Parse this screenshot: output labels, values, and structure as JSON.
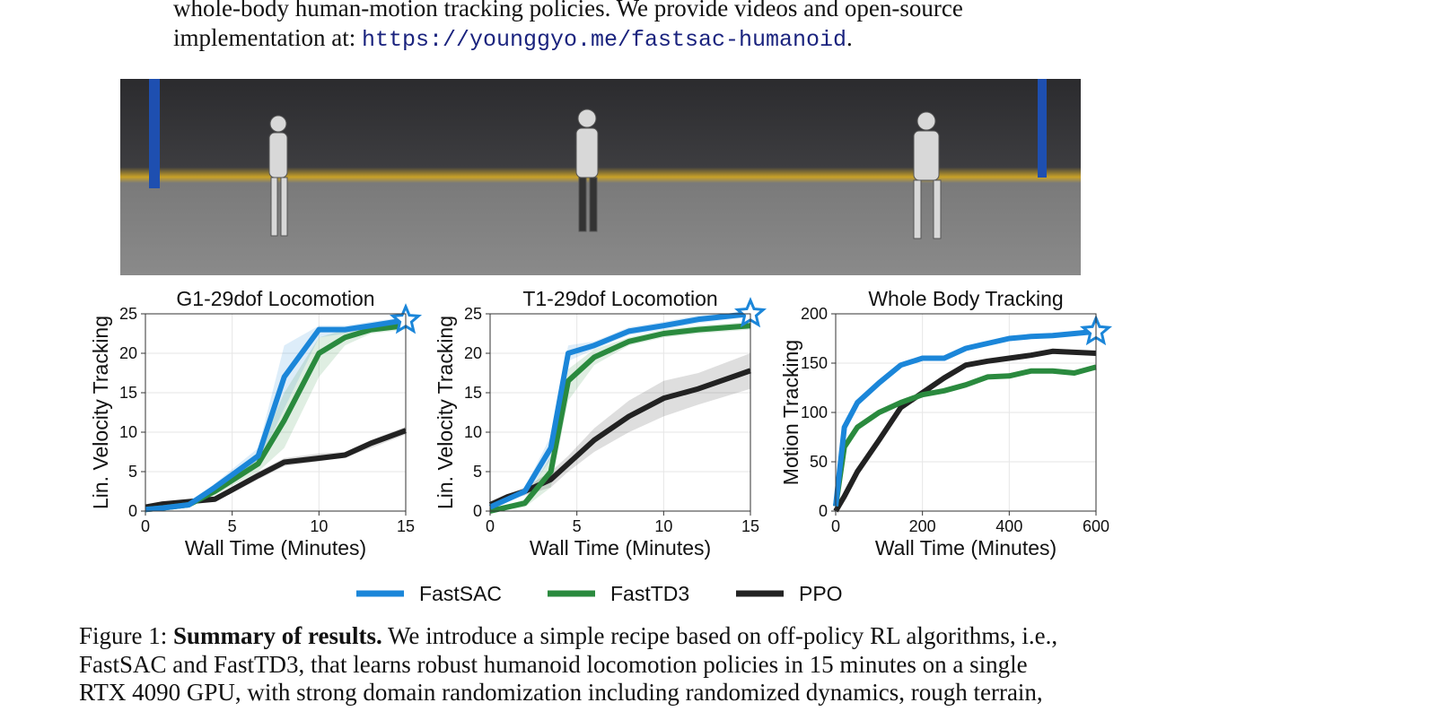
{
  "text_top": {
    "line1": "whole-body human-motion tracking policies. We provide videos and open-source",
    "line2_prefix": "implementation at:",
    "link": "https://younggyo.me/fastsac-humanoid",
    "line2_suffix": "."
  },
  "legend": [
    {
      "name": "FastSAC",
      "color": "#1b86d9"
    },
    {
      "name": "FastTD3",
      "color": "#2a8a3e"
    },
    {
      "name": "PPO",
      "color": "#222222"
    }
  ],
  "chart_data": [
    {
      "type": "line",
      "title": "G1-29dof Locomotion",
      "x_label": "Wall Time (Minutes)",
      "y_label": "Lin. Velocity Tracking",
      "grid": true,
      "xlim": [
        0,
        15
      ],
      "ylim": [
        0,
        25
      ],
      "xticks": [
        0,
        5,
        10,
        15
      ],
      "yticks": [
        0,
        5,
        10,
        15,
        20,
        25
      ],
      "x": [
        0,
        1,
        2.5,
        4,
        6.5,
        8,
        10,
        11.5,
        13,
        15
      ],
      "series": [
        {
          "values": [
            0.2,
            0.4,
            0.8,
            3,
            7,
            17,
            23,
            23,
            23.5,
            24.2
          ],
          "lower": [
            0,
            0.2,
            0.6,
            2.5,
            6,
            13,
            22,
            22.5,
            23,
            23.8
          ],
          "upper": [
            0.4,
            0.6,
            1,
            3.5,
            8,
            21,
            23.5,
            23.5,
            24,
            24.6
          ]
        },
        {
          "values": [
            0.2,
            0.4,
            0.8,
            2.5,
            6,
            11.5,
            20,
            22,
            23,
            23.5
          ],
          "lower": [
            0,
            0.2,
            0.6,
            2,
            5,
            8,
            17,
            21,
            22.5,
            23
          ],
          "upper": [
            0.4,
            0.6,
            1,
            3,
            7.5,
            15,
            22,
            23,
            23.5,
            24
          ]
        },
        {
          "values": [
            0.5,
            0.9,
            1.2,
            1.5,
            4.5,
            6.2,
            6.7,
            7.1,
            8.6,
            10.2
          ],
          "lower": [
            0.3,
            0.7,
            1,
            1.2,
            4,
            5.7,
            6.3,
            6.8,
            8,
            9.7
          ],
          "upper": [
            0.7,
            1.1,
            1.4,
            1.8,
            5,
            6.7,
            7.3,
            7.5,
            9,
            10.7
          ]
        }
      ]
    },
    {
      "type": "line",
      "title": "T1-29dof Locomotion",
      "x_label": "Wall Time (Minutes)",
      "y_label": "Lin. Velocity Tracking",
      "grid": true,
      "xlim": [
        0,
        15
      ],
      "ylim": [
        0,
        25
      ],
      "xticks": [
        0,
        5,
        10,
        15
      ],
      "yticks": [
        0,
        5,
        10,
        15,
        20,
        25
      ],
      "x": [
        0,
        1,
        2,
        3.5,
        4.5,
        6,
        8,
        10,
        12,
        15
      ],
      "series": [
        {
          "values": [
            0.5,
            1.5,
            2.5,
            8,
            20,
            21,
            22.8,
            23.5,
            24.3,
            25
          ],
          "lower": [
            0.3,
            1.2,
            2,
            6.5,
            19,
            20.5,
            22.3,
            23,
            23.8,
            24.6
          ],
          "upper": [
            0.7,
            1.8,
            3,
            9.5,
            21,
            21.5,
            23.3,
            24,
            24.8,
            25.3
          ]
        },
        {
          "values": [
            0,
            0.5,
            1,
            5,
            16.5,
            19.5,
            21.5,
            22.5,
            23,
            23.5
          ],
          "lower": [
            0,
            0.2,
            0.5,
            3,
            14,
            18.5,
            21,
            22,
            22.5,
            23
          ],
          "upper": [
            0.3,
            0.8,
            1.5,
            7,
            18,
            20.5,
            22,
            23,
            23.5,
            24
          ]
        },
        {
          "values": [
            0.8,
            1.8,
            2.5,
            4,
            6,
            9,
            12,
            14.3,
            15.5,
            17.8
          ],
          "lower": [
            0.6,
            1.5,
            2,
            3,
            5,
            7.5,
            10,
            12,
            13.5,
            15.5
          ],
          "upper": [
            1,
            2.1,
            3,
            5,
            7,
            10.5,
            14,
            16.5,
            17.5,
            20
          ]
        }
      ]
    },
    {
      "type": "line",
      "title": "Whole Body Tracking",
      "x_label": "Wall Time (Minutes)",
      "y_label": "Motion Tracking",
      "grid": true,
      "xlim": [
        0,
        600
      ],
      "ylim": [
        0,
        200
      ],
      "xticks": [
        0,
        200,
        400,
        600
      ],
      "yticks": [
        0,
        50,
        100,
        150,
        200
      ],
      "x": [
        0,
        20,
        50,
        100,
        150,
        200,
        250,
        300,
        350,
        400,
        450,
        500,
        550,
        600
      ],
      "series": [
        {
          "values": [
            5,
            85,
            110,
            130,
            148,
            155,
            155,
            165,
            170,
            175,
            177,
            178,
            180,
            182
          ]
        },
        {
          "values": [
            5,
            65,
            85,
            100,
            110,
            118,
            122,
            128,
            136,
            137,
            142,
            142,
            140,
            146
          ]
        },
        {
          "values": [
            0,
            15,
            40,
            72,
            105,
            120,
            135,
            148,
            152,
            155,
            158,
            162,
            161,
            160
          ]
        }
      ]
    }
  ],
  "caption": {
    "label": "Figure 1:",
    "bold": "Summary of results.",
    "line1": "We introduce a simple recipe based on off-policy RL algorithms, i.e.,",
    "line2": "FastSAC and FastTD3, that learns robust humanoid locomotion policies in 15 minutes on a single",
    "line3": "RTX 4090 GPU, with strong domain randomization including randomized dynamics, rough terrain,"
  }
}
